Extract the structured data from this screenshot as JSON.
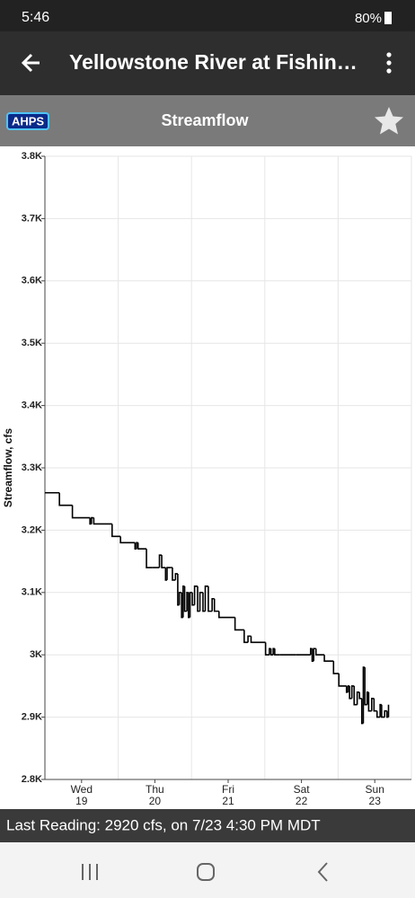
{
  "status_bar": {
    "time": "5:46",
    "battery": "80%"
  },
  "app_bar": {
    "title": "Yellowstone River at Fishin…"
  },
  "header": {
    "badge": "AHPS",
    "title": "Streamflow"
  },
  "chart_data": {
    "type": "line",
    "drawstyle": "steps-post",
    "color": "#000000",
    "grid": true,
    "ylabel": "Streamflow, cfs",
    "ylim": [
      2800,
      3800
    ],
    "yticks": [
      {
        "value": 3800,
        "label": "3.8K"
      },
      {
        "value": 3700,
        "label": "3.7K"
      },
      {
        "value": 3600,
        "label": "3.6K"
      },
      {
        "value": 3500,
        "label": "3.5K"
      },
      {
        "value": 3400,
        "label": "3.4K"
      },
      {
        "value": 3300,
        "label": "3.3K"
      },
      {
        "value": 3200,
        "label": "3.2K"
      },
      {
        "value": 3100,
        "label": "3.1K"
      },
      {
        "value": 3000,
        "label": "3K"
      },
      {
        "value": 2900,
        "label": "2.9K"
      },
      {
        "value": 2800,
        "label": "2.8K"
      }
    ],
    "xlim": [
      "7/19 00:00",
      "7/24 00:00"
    ],
    "xticks": [
      {
        "value": "7/19 12:00",
        "label": "Wed 19"
      },
      {
        "value": "7/20 12:00",
        "label": "Thu 20"
      },
      {
        "value": "7/21 12:00",
        "label": "Fri 21"
      },
      {
        "value": "7/22 12:00",
        "label": "Sat 22"
      },
      {
        "value": "7/23 12:00",
        "label": "Sun 23"
      }
    ],
    "x": [
      "7/19 00:00",
      "7/19 04:45",
      "7/19 09:00",
      "7/19 14:45",
      "7/19 15:15",
      "7/19 16:00",
      "7/19 22:00",
      "7/20 00:45",
      "7/20 05:30",
      "7/20 06:00",
      "7/20 06:30",
      "7/20 09:15",
      "7/20 11:15",
      "7/20 13:30",
      "7/20 14:15",
      "7/20 15:30",
      "7/20 16:00",
      "7/20 17:15",
      "7/20 17:45",
      "7/20 18:45",
      "7/20 19:30",
      "7/20 20:00",
      "7/20 20:45",
      "7/20 21:15",
      "7/20 21:45",
      "7/20 22:30",
      "7/20 23:00",
      "7/20 23:30",
      "7/21 00:15",
      "7/21 01:00",
      "7/21 02:00",
      "7/21 02:45",
      "7/21 03:45",
      "7/21 04:30",
      "7/21 05:30",
      "7/21 06:45",
      "7/21 07:30",
      "7/21 09:00",
      "7/21 14:15",
      "7/21 17:15",
      "7/21 18:30",
      "7/21 19:30",
      "7/22 00:15",
      "7/22 01:30",
      "7/22 02:00",
      "7/22 02:45",
      "7/22 03:15",
      "7/22 05:00",
      "7/22 10:15",
      "7/22 15:00",
      "7/22 15:30",
      "7/22 16:00",
      "7/22 16:45",
      "7/22 19:30",
      "7/22 22:30",
      "7/23 00:15",
      "7/23 02:45",
      "7/23 03:15",
      "7/23 03:45",
      "7/23 04:30",
      "7/23 05:15",
      "7/23 06:15",
      "7/23 07:00",
      "7/23 07:45",
      "7/23 08:15",
      "7/23 08:45",
      "7/23 09:30",
      "7/23 10:00",
      "7/23 11:00",
      "7/23 11:45",
      "7/23 12:45",
      "7/23 13:45",
      "7/23 14:15",
      "7/23 15:15",
      "7/23 16:00",
      "7/23 16:30"
    ],
    "values": [
      3260,
      3240,
      3220,
      3210,
      3220,
      3210,
      3190,
      3180,
      3170,
      3180,
      3170,
      3140,
      3140,
      3160,
      3140,
      3120,
      3140,
      3140,
      3120,
      3130,
      3080,
      3100,
      3060,
      3110,
      3070,
      3100,
      3060,
      3100,
      3080,
      3110,
      3070,
      3100,
      3070,
      3110,
      3070,
      3090,
      3070,
      3060,
      3040,
      3020,
      3030,
      3020,
      3000,
      3010,
      3000,
      3010,
      3000,
      3000,
      3000,
      3010,
      2990,
      3010,
      3000,
      2990,
      2970,
      2950,
      2940,
      2950,
      2930,
      2950,
      2920,
      2940,
      2930,
      2890,
      2980,
      2920,
      2940,
      2910,
      2930,
      2910,
      2900,
      2920,
      2900,
      2910,
      2900,
      2920
    ]
  },
  "footer": {
    "last_reading": "Last Reading: 2920 cfs, on 7/23 4:30 PM MDT"
  }
}
